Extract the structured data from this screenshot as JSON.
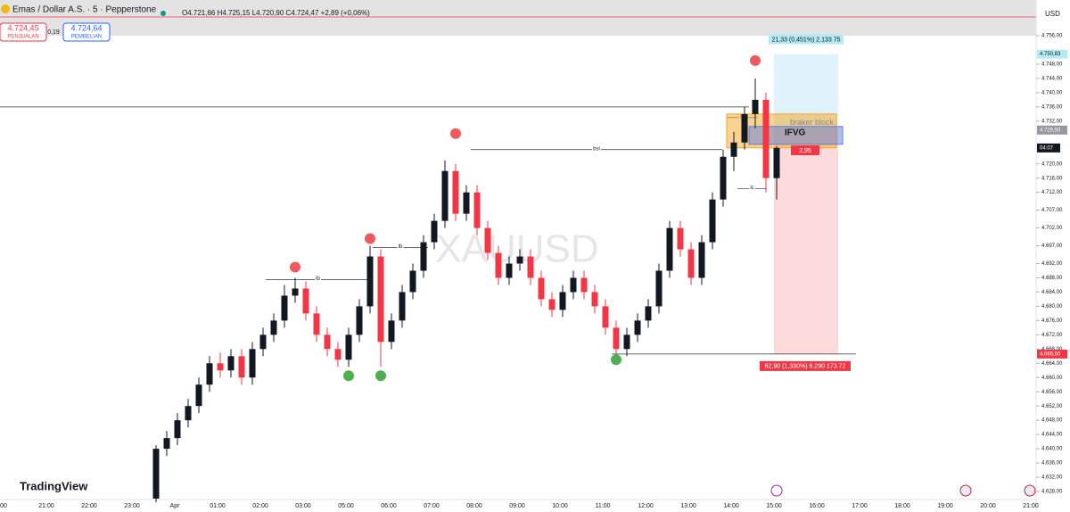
{
  "header": {
    "symbol": "Emas / Dollar A.S. · 5 · Pepperstone",
    "ohlc": "O4.721,66 H4.725,15 L4.720,90 C4.724,47 +2,89 (+0,06%)",
    "sell": {
      "price": "4.724,45",
      "label": "PENJUALAN"
    },
    "spread": "0,19",
    "buy": {
      "price": "4.724,64",
      "label": "PEMBELIAN"
    },
    "currency": "USD"
  },
  "chart_data": {
    "type": "candlestick",
    "watermark": "XAUUSD",
    "brand": "TradingView",
    "up_color": "#131722",
    "down_color": "#f23645",
    "categories": [
      "00",
      "21:00",
      "22:00",
      "23:00",
      "Apr",
      "01:00",
      "02:00",
      "03:00",
      "05:00",
      "06:00",
      "07:00",
      "08:00",
      "09:00",
      "10:00",
      "11:00",
      "12:00",
      "13:00",
      "14:00",
      "15:00",
      "16:00",
      "17:00",
      "18:00",
      "19:00",
      "20:00",
      "21:00"
    ],
    "open": [
      4626,
      4640,
      4643,
      4648,
      4652,
      4658,
      4664,
      4662,
      4666,
      4660,
      4668,
      4672,
      4676,
      4683,
      4685,
      4678,
      4672,
      4668,
      4665,
      4672,
      4680,
      4694,
      4670,
      4676,
      4684,
      4690,
      4698,
      4704,
      4718,
      4706,
      4712,
      4702,
      4695,
      4688,
      4692,
      4694,
      4688,
      4682,
      4679,
      4684,
      4688,
      4684,
      4680,
      4674,
      4668,
      4672,
      4676,
      4680,
      4690,
      4702,
      4696,
      4688,
      4698,
      4710,
      4722,
      4726,
      4734,
      4738,
      4716
    ],
    "high": [
      4641,
      4645,
      4650,
      4654,
      4660,
      4666,
      4667,
      4668,
      4668,
      4670,
      4674,
      4678,
      4686,
      4688,
      4687,
      4680,
      4674,
      4670,
      4674,
      4682,
      4697,
      4696,
      4678,
      4686,
      4692,
      4700,
      4706,
      4721,
      4720,
      4714,
      4714,
      4704,
      4697,
      4694,
      4696,
      4696,
      4690,
      4684,
      4686,
      4690,
      4690,
      4686,
      4682,
      4676,
      4674,
      4678,
      4682,
      4692,
      4704,
      4704,
      4698,
      4700,
      4712,
      4724,
      4729,
      4736,
      4744,
      4740,
      4725
    ],
    "low": [
      4625,
      4638,
      4641,
      4646,
      4650,
      4656,
      4660,
      4660,
      4658,
      4658,
      4666,
      4670,
      4674,
      4681,
      4676,
      4670,
      4666,
      4663,
      4663,
      4670,
      4678,
      4663,
      4668,
      4674,
      4682,
      4688,
      4696,
      4702,
      4704,
      4704,
      4700,
      4693,
      4686,
      4686,
      4690,
      4686,
      4680,
      4677,
      4677,
      4682,
      4682,
      4678,
      4672,
      4666,
      4666,
      4670,
      4674,
      4678,
      4688,
      4694,
      4686,
      4686,
      4696,
      4708,
      4718,
      4724,
      4730,
      4712,
      4710
    ],
    "close": [
      4640,
      4643,
      4648,
      4652,
      4658,
      4664,
      4662,
      4666,
      4660,
      4668,
      4672,
      4676,
      4683,
      4685,
      4678,
      4672,
      4668,
      4665,
      4672,
      4680,
      4694,
      4670,
      4676,
      4684,
      4690,
      4698,
      4704,
      4718,
      4706,
      4712,
      4702,
      4695,
      4688,
      4692,
      4694,
      4688,
      4682,
      4679,
      4684,
      4688,
      4684,
      4680,
      4674,
      4668,
      4672,
      4676,
      4680,
      4690,
      4702,
      4696,
      4688,
      4698,
      4710,
      4722,
      4726,
      4734,
      4738,
      4716,
      4724.47
    ],
    "countdown": "04:07",
    "ylim": [
      4628,
      4756
    ],
    "yticks": [
      {
        "value": 4756,
        "label": "4.756,00"
      },
      {
        "value": 4748,
        "label": "4.748,00"
      },
      {
        "value": 4744,
        "label": "4.744,00"
      },
      {
        "value": 4740,
        "label": "4.740,00"
      },
      {
        "value": 4736,
        "label": "4.736,00"
      },
      {
        "value": 4732,
        "label": "4.732,00"
      },
      {
        "value": 4720,
        "label": "4.720,00"
      },
      {
        "value": 4716,
        "label": "4.716,00"
      },
      {
        "value": 4712,
        "label": "4.712,00"
      },
      {
        "value": 4707,
        "label": "4.707,00"
      },
      {
        "value": 4702,
        "label": "4.702,00"
      },
      {
        "value": 4697,
        "label": "4.697,00"
      },
      {
        "value": 4692,
        "label": "4.692,00"
      },
      {
        "value": 4688,
        "label": "4.688,00"
      },
      {
        "value": 4684,
        "label": "4.684,00"
      },
      {
        "value": 4680,
        "label": "4.680,00"
      },
      {
        "value": 4676,
        "label": "4.676,00"
      },
      {
        "value": 4672,
        "label": "4.672,00"
      },
      {
        "value": 4668,
        "label": "4.668,00"
      },
      {
        "value": 4664,
        "label": "4.664,00"
      },
      {
        "value": 4660,
        "label": "4.660,00"
      },
      {
        "value": 4656,
        "label": "4.656,00"
      },
      {
        "value": 4652,
        "label": "4.652,00"
      },
      {
        "value": 4648,
        "label": "4.648,00"
      },
      {
        "value": 4644,
        "label": "4.644,00"
      },
      {
        "value": 4640,
        "label": "4.640,00"
      },
      {
        "value": 4636,
        "label": "4.636,00"
      },
      {
        "value": 4632,
        "label": "4.632,00"
      },
      {
        "value": 4628,
        "label": "4.628,00"
      }
    ],
    "position": {
      "target": {
        "value": 4750.83,
        "label": "4.750,83"
      },
      "entry": {
        "value": 4729.5,
        "label": "4.729,50"
      },
      "stop": {
        "value": 4666.6,
        "label": "4.666,60"
      },
      "target_text": "21,33 (0,451%) 2.133 75",
      "stop_text": "62,90 (1,330%) 6.290 173.72"
    },
    "levels": [
      {
        "value": 4736
      },
      {
        "value": 4687.5,
        "label": "lb"
      },
      {
        "value": 4696.5,
        "label": "lb"
      },
      {
        "value": 4724,
        "label": "bsl"
      },
      {
        "value": 4733,
        "label": "lb"
      },
      {
        "value": 4713,
        "label": "lc"
      }
    ],
    "zones": [
      {
        "top": 4734,
        "bottom": 4724.5,
        "label": "braker block",
        "color": "#f5a623"
      },
      {
        "top": 4730.5,
        "bottom": 4725.5,
        "label": "IFVG",
        "color": "#5b7fde"
      }
    ],
    "zone_tag": "2,95",
    "highs": [
      {
        "index": 13,
        "value": 4689
      },
      {
        "index": 20,
        "value": 4697
      },
      {
        "index": 28,
        "value": 4726.5
      },
      {
        "index": 56,
        "value": 4747
      }
    ],
    "lows": [
      {
        "index": 18,
        "value": 4662.5
      },
      {
        "index": 21,
        "value": 4662.5
      },
      {
        "index": 43,
        "value": 4667
      }
    ]
  }
}
